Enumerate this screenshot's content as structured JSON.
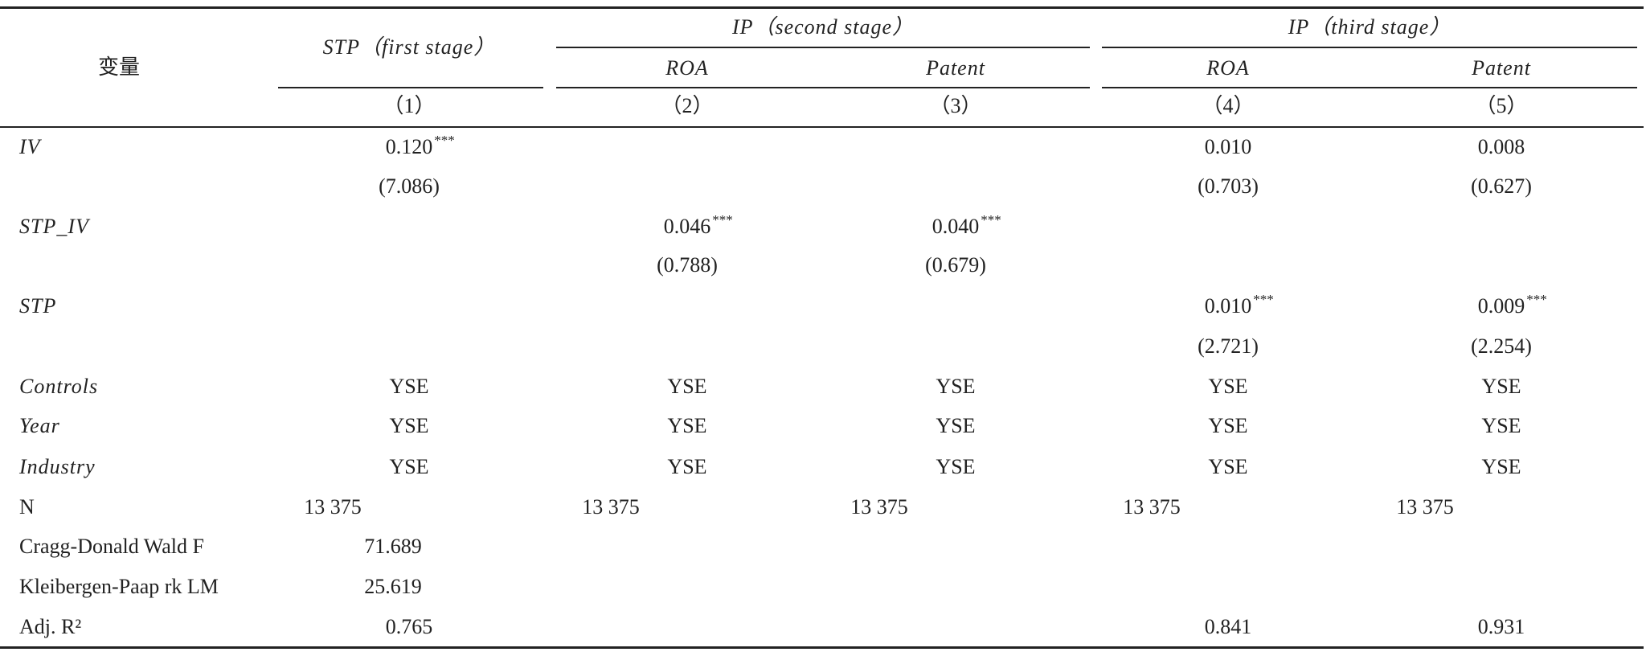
{
  "table": {
    "header": {
      "variable": "变量",
      "groups": [
        {
          "label": "STP（first stage）",
          "sub": []
        },
        {
          "label": "IP（second stage）",
          "sub": [
            "ROA",
            "Patent"
          ]
        },
        {
          "label": "IP（third stage）",
          "sub": [
            "ROA",
            "Patent"
          ]
        }
      ],
      "numbers": [
        "（1）",
        "（2）",
        "（3）",
        "（4）",
        "（5）"
      ]
    },
    "rows": [
      {
        "label": "IV",
        "italic": true,
        "cells": [
          {
            "value": "0.120",
            "stars": "***"
          },
          null,
          null,
          {
            "value": "0.010"
          },
          {
            "value": "0.008"
          }
        ]
      },
      {
        "label": null,
        "italic": false,
        "cells": [
          {
            "value": "(7.086)"
          },
          null,
          null,
          {
            "value": "(0.703)"
          },
          {
            "value": "(0.627)"
          }
        ]
      },
      {
        "label": "STP_IV",
        "italic": true,
        "cells": [
          null,
          {
            "value": "0.046",
            "stars": "***"
          },
          {
            "value": "0.040",
            "stars": "***"
          },
          null,
          null
        ]
      },
      {
        "label": null,
        "italic": false,
        "cells": [
          null,
          {
            "value": "(0.788)"
          },
          {
            "value": "(0.679)"
          },
          null,
          null
        ]
      },
      {
        "label": "STP",
        "italic": true,
        "cells": [
          null,
          null,
          null,
          {
            "value": "0.010",
            "stars": "***"
          },
          {
            "value": "0.009",
            "stars": "***"
          }
        ]
      },
      {
        "label": null,
        "italic": false,
        "cells": [
          null,
          null,
          null,
          {
            "value": "(2.721)"
          },
          {
            "value": "(2.254)"
          }
        ]
      },
      {
        "label": "Controls",
        "italic": true,
        "cells": [
          {
            "value": "YSE"
          },
          {
            "value": "YSE"
          },
          {
            "value": "YSE"
          },
          {
            "value": "YSE"
          },
          {
            "value": "YSE"
          }
        ]
      },
      {
        "label": "Year",
        "italic": true,
        "cells": [
          {
            "value": "YSE"
          },
          {
            "value": "YSE"
          },
          {
            "value": "YSE"
          },
          {
            "value": "YSE"
          },
          {
            "value": "YSE"
          }
        ]
      },
      {
        "label": "Industry",
        "italic": true,
        "cells": [
          {
            "value": "YSE"
          },
          {
            "value": "YSE"
          },
          {
            "value": "YSE"
          },
          {
            "value": "YSE"
          },
          {
            "value": "YSE"
          }
        ]
      },
      {
        "label": "N",
        "italic": false,
        "cells": [
          {
            "value": "13 375"
          },
          {
            "value": "13 375"
          },
          {
            "value": "13 375"
          },
          {
            "value": "13 375"
          },
          {
            "value": "13 375"
          }
        ]
      },
      {
        "label": "Cragg-Donald Wald F",
        "italic": false,
        "cells": [
          {
            "value": "71.689"
          },
          null,
          null,
          null,
          null
        ]
      },
      {
        "label": "Kleibergen-Paap rk LM",
        "italic": false,
        "cells": [
          {
            "value": "25.619"
          },
          null,
          null,
          null,
          null
        ]
      },
      {
        "label": "Adj. R²",
        "italic": false,
        "cells": [
          {
            "value": "0.765"
          },
          null,
          null,
          {
            "value": "0.841"
          },
          {
            "value": "0.931"
          }
        ]
      }
    ]
  }
}
